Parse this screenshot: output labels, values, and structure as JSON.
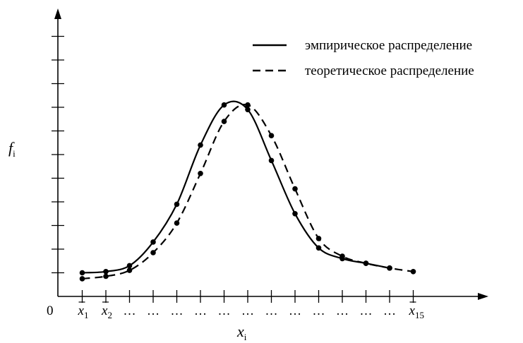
{
  "chart_data": {
    "type": "line",
    "xlabel": "x",
    "xlabel_sub": "i",
    "ylabel": "f",
    "ylabel_sub": "i",
    "origin_label": "0",
    "x_ticks": [
      {
        "base": "x",
        "sub": "1",
        "bar": true
      },
      {
        "base": "x",
        "sub": "2",
        "bar": true
      },
      {
        "text": "…"
      },
      {
        "text": "…"
      },
      {
        "text": "…"
      },
      {
        "text": "…"
      },
      {
        "text": "…"
      },
      {
        "text": "…"
      },
      {
        "text": "…"
      },
      {
        "text": "…"
      },
      {
        "text": "…"
      },
      {
        "text": "…"
      },
      {
        "text": "…"
      },
      {
        "text": "…"
      },
      {
        "base": "x",
        "sub": "15",
        "bar": true
      }
    ],
    "x": [
      1,
      2,
      3,
      4,
      5,
      6,
      7,
      8,
      9,
      10,
      11,
      12,
      13,
      14,
      15
    ],
    "legend_position": "top-right",
    "grid": false,
    "ylim": [
      0,
      11
    ],
    "xlim": [
      0,
      18
    ],
    "series": [
      {
        "name": "эмпирическое распределение",
        "style": "solid",
        "x": [
          1,
          2,
          3,
          4,
          5,
          6,
          7,
          8,
          9,
          10,
          11,
          12,
          13,
          14
        ],
        "y": [
          1.0,
          1.05,
          1.3,
          2.3,
          3.9,
          6.4,
          8.1,
          7.9,
          5.75,
          3.5,
          2.05,
          1.6,
          1.4,
          1.2
        ]
      },
      {
        "name": "теоретическое распределение",
        "style": "dashed",
        "x": [
          1,
          2,
          3,
          4,
          5,
          6,
          7,
          8,
          9,
          10,
          11,
          12,
          13,
          14,
          15
        ],
        "y": [
          0.75,
          0.85,
          1.1,
          1.85,
          3.1,
          5.2,
          7.4,
          8.1,
          6.8,
          4.55,
          2.45,
          1.7,
          1.4,
          1.2,
          1.05
        ]
      }
    ]
  }
}
